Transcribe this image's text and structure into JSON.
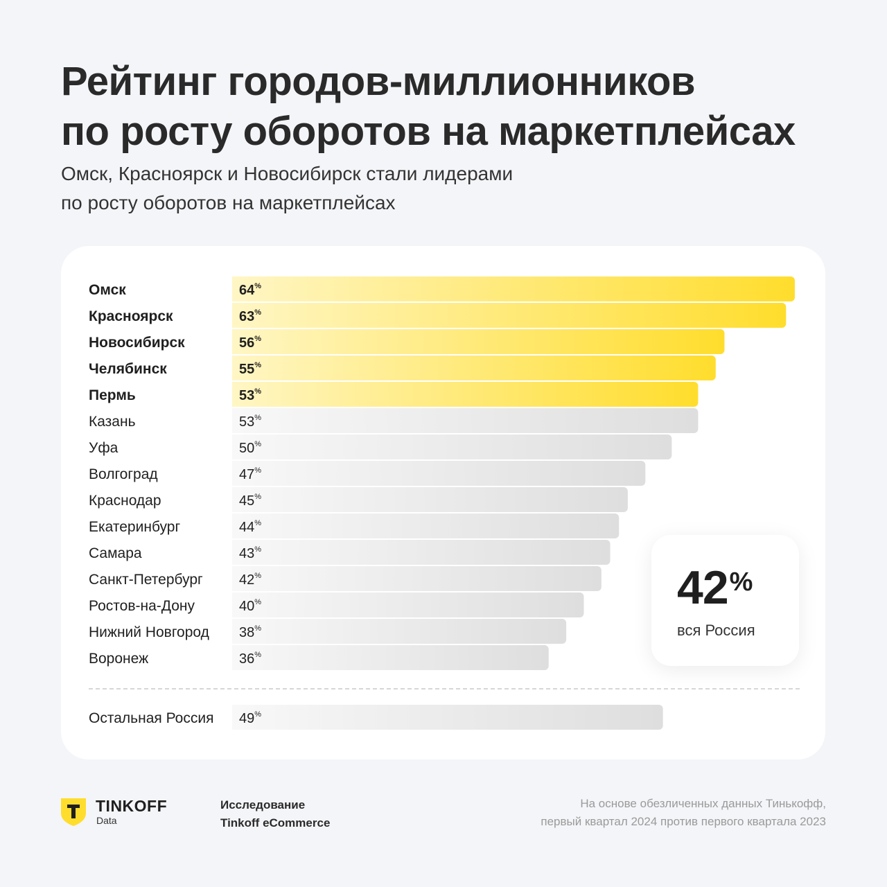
{
  "header": {
    "title_line1": "Рейтинг городов-миллионников",
    "title_line2": "по росту оборотов на маркетплейсах",
    "subtitle_line1": "Омск, Красноярск и Новосибирск стали лидерами",
    "subtitle_line2": "по росту оборотов на маркетплейсах"
  },
  "chart_data": {
    "type": "bar",
    "orientation": "horizontal",
    "value_suffix": "%",
    "categories": [
      "Омск",
      "Красноярск",
      "Новосибирск",
      "Челябинск",
      "Пермь",
      "Казань",
      "Уфа",
      "Волгоград",
      "Краснодар",
      "Екатеринбург",
      "Самара",
      "Санкт-Петербург",
      "Ростов-на-Дону",
      "Нижний Новгород",
      "Воронеж"
    ],
    "values": [
      64,
      63,
      56,
      55,
      53,
      53,
      50,
      47,
      45,
      44,
      43,
      42,
      40,
      38,
      36
    ],
    "highlighted_top": 5,
    "extra_row": {
      "category": "Остальная Россия",
      "value": 49
    },
    "colors": {
      "highlight_end": "#ffdd2d",
      "highlight_start": "#fff6c4",
      "neutral_end": "#dedede",
      "neutral_start": "#f8f8f8"
    }
  },
  "stat": {
    "value": "42",
    "unit": "%",
    "label": "вся Россия"
  },
  "footer": {
    "logo_name": "TINKOFF",
    "logo_sub": "Data",
    "logo_icon": "tinkoff-shield-icon",
    "study_line1": "Исследование",
    "study_line2": "Tinkoff eCommerce",
    "note_line1": "На основе обезличенных данных Тинькофф,",
    "note_line2": "первый квартал 2024 против первого квартала 2023"
  }
}
